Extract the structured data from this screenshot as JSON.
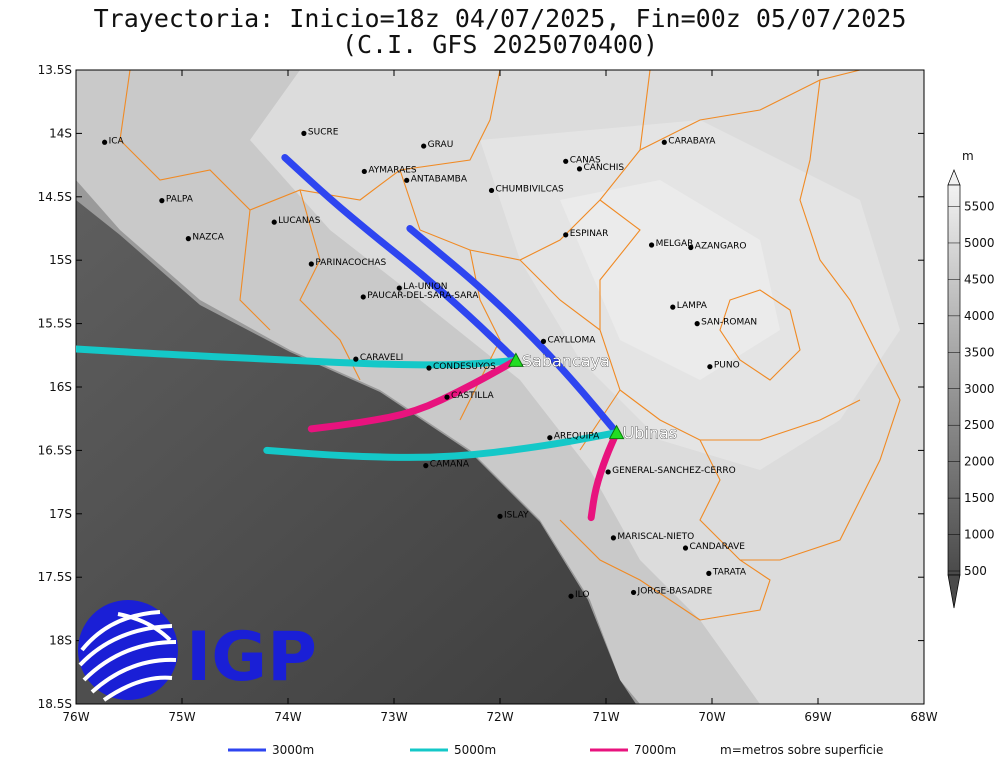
{
  "title": {
    "line1": "Trayectoria: Inicio=18z 04/07/2025, Fin=00z 05/07/2025",
    "line2": "(C.I. GFS 2025070400)"
  },
  "axes": {
    "x_ticks": [
      "76W",
      "75W",
      "74W",
      "73W",
      "72W",
      "71W",
      "70W",
      "69W",
      "68W"
    ],
    "y_ticks": [
      "13.5S",
      "14S",
      "14.5S",
      "15S",
      "15.5S",
      "16S",
      "16.5S",
      "17S",
      "17.5S",
      "18S",
      "18.5S"
    ],
    "lon_range": [
      -76,
      -68
    ],
    "lat_range": [
      -18.5,
      -13.5
    ]
  },
  "colorbar": {
    "unit": "m",
    "labels": [
      "500",
      "1000",
      "1500",
      "2000",
      "2500",
      "3000",
      "3500",
      "4000",
      "4500",
      "5000",
      "5500"
    ]
  },
  "cities": [
    {
      "name": "ICA",
      "lon": -75.73,
      "lat": -14.07
    },
    {
      "name": "SUCRE",
      "lon": -73.85,
      "lat": -14.0
    },
    {
      "name": "GRAU",
      "lon": -72.72,
      "lat": -14.1
    },
    {
      "name": "AYMARAES",
      "lon": -73.28,
      "lat": -14.3
    },
    {
      "name": "ANTABAMBA",
      "lon": -72.88,
      "lat": -14.37
    },
    {
      "name": "CHUMBIVILCAS",
      "lon": -72.08,
      "lat": -14.45
    },
    {
      "name": "CANAS",
      "lon": -71.38,
      "lat": -14.22
    },
    {
      "name": "CANCHIS",
      "lon": -71.25,
      "lat": -14.28
    },
    {
      "name": "CARABAYA",
      "lon": -70.45,
      "lat": -14.07
    },
    {
      "name": "PALPA",
      "lon": -75.19,
      "lat": -14.53
    },
    {
      "name": "LUCANAS",
      "lon": -74.13,
      "lat": -14.7
    },
    {
      "name": "ESPINAR",
      "lon": -71.38,
      "lat": -14.8
    },
    {
      "name": "NAZCA",
      "lon": -74.94,
      "lat": -14.83
    },
    {
      "name": "MELGAR",
      "lon": -70.57,
      "lat": -14.88
    },
    {
      "name": "AZANGARO",
      "lon": -70.2,
      "lat": -14.9
    },
    {
      "name": "PARINACOCHAS",
      "lon": -73.78,
      "lat": -15.03
    },
    {
      "name": "LA-UNION",
      "lon": -72.95,
      "lat": -15.22
    },
    {
      "name": "PAUCAR-DEL-SARA-SARA",
      "lon": -73.29,
      "lat": -15.29
    },
    {
      "name": "LAMPA",
      "lon": -70.37,
      "lat": -15.37
    },
    {
      "name": "SAN-ROMAN",
      "lon": -70.14,
      "lat": -15.5
    },
    {
      "name": "CAYLLOMA",
      "lon": -71.59,
      "lat": -15.64
    },
    {
      "name": "CARAVELI",
      "lon": -73.36,
      "lat": -15.78
    },
    {
      "name": "CONDESUYOS",
      "lon": -72.67,
      "lat": -15.85
    },
    {
      "name": "PUNO",
      "lon": -70.02,
      "lat": -15.84
    },
    {
      "name": "CASTILLA",
      "lon": -72.5,
      "lat": -16.08
    },
    {
      "name": "AREQUIPA",
      "lon": -71.53,
      "lat": -16.4
    },
    {
      "name": "GENERAL-SANCHEZ-CERRO",
      "lon": -70.98,
      "lat": -16.67
    },
    {
      "name": "CAMANA",
      "lon": -72.7,
      "lat": -16.62
    },
    {
      "name": "ISLAY",
      "lon": -72.0,
      "lat": -17.02
    },
    {
      "name": "MARISCAL-NIETO",
      "lon": -70.93,
      "lat": -17.19
    },
    {
      "name": "CANDARAVE",
      "lon": -70.25,
      "lat": -17.27
    },
    {
      "name": "TARATA",
      "lon": -70.03,
      "lat": -17.47
    },
    {
      "name": "ILO",
      "lon": -71.33,
      "lat": -17.65
    },
    {
      "name": "JORGE-BASADRE",
      "lon": -70.74,
      "lat": -17.62
    }
  ],
  "volcanoes": [
    {
      "name": "Sabancaya",
      "lon": -71.85,
      "lat": -15.79
    },
    {
      "name": "Ubinas",
      "lon": -70.9,
      "lat": -16.36
    }
  ],
  "trajectories": [
    {
      "volcano": "Sabancaya",
      "level": "3000m",
      "color": "#2e45f0",
      "points": [
        [
          -71.85,
          -15.79
        ],
        [
          -72.3,
          -15.43
        ],
        [
          -72.75,
          -15.1
        ],
        [
          -73.2,
          -14.8
        ],
        [
          -73.6,
          -14.52
        ],
        [
          -74.03,
          -14.19
        ]
      ]
    },
    {
      "volcano": "Ubinas",
      "level": "3000m",
      "color": "#2e45f0",
      "points": [
        [
          -70.9,
          -16.36
        ],
        [
          -71.3,
          -15.96
        ],
        [
          -71.7,
          -15.6
        ],
        [
          -72.2,
          -15.2
        ],
        [
          -72.85,
          -14.75
        ]
      ]
    },
    {
      "volcano": "Sabancaya",
      "level": "5000m",
      "color": "#14c8c8",
      "points": [
        [
          -71.85,
          -15.79
        ],
        [
          -72.4,
          -15.83
        ],
        [
          -73.2,
          -15.82
        ],
        [
          -74.2,
          -15.78
        ],
        [
          -75.2,
          -15.74
        ],
        [
          -76.0,
          -15.7
        ]
      ]
    },
    {
      "volcano": "Ubinas",
      "level": "5000m",
      "color": "#14c8c8",
      "points": [
        [
          -70.9,
          -16.36
        ],
        [
          -71.6,
          -16.47
        ],
        [
          -72.5,
          -16.56
        ],
        [
          -73.4,
          -16.55
        ],
        [
          -74.2,
          -16.5
        ]
      ]
    },
    {
      "volcano": "Sabancaya",
      "level": "7000m",
      "color": "#e8137e",
      "points": [
        [
          -71.85,
          -15.79
        ],
        [
          -72.3,
          -16.0
        ],
        [
          -72.8,
          -16.2
        ],
        [
          -73.3,
          -16.28
        ],
        [
          -73.78,
          -16.33
        ]
      ]
    },
    {
      "volcano": "Ubinas",
      "level": "7000m",
      "color": "#e8137e",
      "points": [
        [
          -70.9,
          -16.36
        ],
        [
          -71.0,
          -16.55
        ],
        [
          -71.1,
          -16.8
        ],
        [
          -71.14,
          -17.03
        ]
      ]
    }
  ],
  "legend": [
    {
      "label": "3000m",
      "color": "#2e45f0"
    },
    {
      "label": "5000m",
      "color": "#14c8c8"
    },
    {
      "label": "7000m",
      "color": "#e8137e"
    }
  ],
  "legend_note": "m=metros sobre superficie",
  "logo": {
    "text": "IGP",
    "color": "#1a1fd6"
  }
}
